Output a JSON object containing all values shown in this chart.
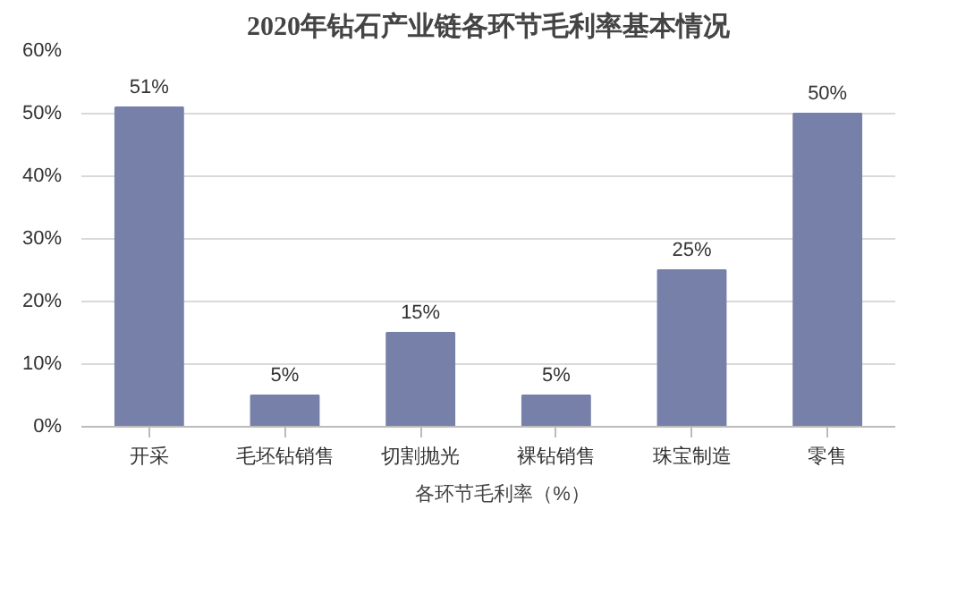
{
  "chart_data": {
    "type": "bar",
    "title": "2020年钻石产业链各环节毛利率基本情况",
    "categories": [
      "开采",
      "毛坯钻销售",
      "切割抛光",
      "裸钻销售",
      "珠宝制造",
      "零售"
    ],
    "series": [
      {
        "name": "各环节毛利率（%）",
        "color": "#7780a8",
        "values": [
          51,
          5,
          15,
          5,
          25,
          50
        ],
        "value_labels": [
          "51%",
          "5%",
          "15%",
          "5%",
          "25%",
          "50%"
        ]
      }
    ],
    "ylim": [
      0,
      60
    ],
    "yticks": [
      {
        "value": 0,
        "label": "0%"
      },
      {
        "value": 10,
        "label": "10%"
      },
      {
        "value": 20,
        "label": "20%"
      },
      {
        "value": 30,
        "label": "30%"
      },
      {
        "value": 40,
        "label": "40%"
      },
      {
        "value": 50,
        "label": "50%"
      },
      {
        "value": 60,
        "label": "60%"
      }
    ],
    "grid": "y",
    "legend": "bottom"
  }
}
